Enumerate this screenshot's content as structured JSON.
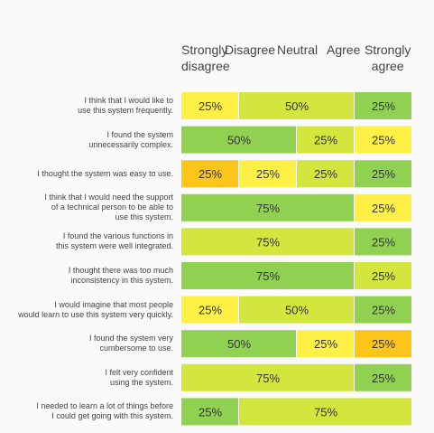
{
  "chart_data": {
    "type": "bar",
    "orientation": "horizontal",
    "stacked": true,
    "percent": true,
    "columns": [
      "Strongly disagree",
      "Disagree",
      "Neutral",
      "Agree",
      "Strongly agree"
    ],
    "header_lines": [
      [
        "Strongly",
        "disagree"
      ],
      [
        "Disagree"
      ],
      [
        "Neutral"
      ],
      [
        "Agree"
      ],
      [
        "Strongly",
        "agree"
      ]
    ],
    "colors": [
      "#fdc419",
      "#fff045",
      "#d2e63d",
      "#fff045",
      "#91d151"
    ],
    "rows": [
      {
        "question": "I think that I would like to use this system frequently.",
        "lines": [
          "I think that I would like to",
          "use this system frequently."
        ],
        "segments": [
          {
            "level": 3,
            "value": 25,
            "label": "25%"
          },
          {
            "level": 2,
            "value": 50,
            "label": "50%"
          },
          {
            "level": 4,
            "value": 25,
            "label": "25%"
          }
        ]
      },
      {
        "question": "I found the system unnecessarily complex.",
        "lines": [
          "I found the system",
          "unnecessarily complex."
        ],
        "segments": [
          {
            "level": 4,
            "value": 50,
            "label": "50%"
          },
          {
            "level": 2,
            "value": 25,
            "label": "25%"
          },
          {
            "level": 3,
            "value": 25,
            "label": "25%"
          }
        ]
      },
      {
        "question": "I thought the system was easy to use.",
        "lines": [
          "I thought the system was easy to use."
        ],
        "segments": [
          {
            "level": 0,
            "value": 25,
            "label": "25%"
          },
          {
            "level": 1,
            "value": 25,
            "label": "25%"
          },
          {
            "level": 2,
            "value": 25,
            "label": "25%"
          },
          {
            "level": 4,
            "value": 25,
            "label": "25%"
          }
        ]
      },
      {
        "question": "I think that I would need the support of a technical person to be able to use this system.",
        "lines": [
          "I think that I would need the support",
          "of a technical person to be able to",
          "use this system."
        ],
        "segments": [
          {
            "level": 4,
            "value": 75,
            "label": "75%"
          },
          {
            "level": 3,
            "value": 25,
            "label": "25%"
          }
        ]
      },
      {
        "question": "I found the various functions in this system were well integrated.",
        "lines": [
          "I found the various functions in",
          "this system were well integrated."
        ],
        "segments": [
          {
            "level": 2,
            "value": 75,
            "label": "75%"
          },
          {
            "level": 4,
            "value": 25,
            "label": "25%"
          }
        ]
      },
      {
        "question": "I thought there was too much inconsistency in this system.",
        "lines": [
          "I thought there was too much",
          "inconsistency in this system."
        ],
        "segments": [
          {
            "level": 4,
            "value": 75,
            "label": "75%"
          },
          {
            "level": 2,
            "value": 25,
            "label": "25%"
          }
        ]
      },
      {
        "question": "I would imagine that most people would learn to use this system very quickly.",
        "lines": [
          "I would imagine that most people",
          "would learn to use this system very quickly."
        ],
        "segments": [
          {
            "level": 3,
            "value": 25,
            "label": "25%"
          },
          {
            "level": 2,
            "value": 50,
            "label": "50%"
          },
          {
            "level": 4,
            "value": 25,
            "label": "25%"
          }
        ]
      },
      {
        "question": "I found the system very cumbersome to use.",
        "lines": [
          "I found the system very",
          "cumbersome to use."
        ],
        "segments": [
          {
            "level": 4,
            "value": 50,
            "label": "50%"
          },
          {
            "level": 1,
            "value": 25,
            "label": "25%"
          },
          {
            "level": 0,
            "value": 25,
            "label": "25%"
          }
        ]
      },
      {
        "question": "I felt very confident using the system.",
        "lines": [
          "I felt very confident",
          "using the system."
        ],
        "segments": [
          {
            "level": 2,
            "value": 75,
            "label": "75%"
          },
          {
            "level": 4,
            "value": 25,
            "label": "25%"
          }
        ]
      },
      {
        "question": "I needed to learn a lot of things before I could get going with this system.",
        "lines": [
          "I needed to learn a lot of things before",
          "I could get going with this system."
        ],
        "segments": [
          {
            "level": 4,
            "value": 25,
            "label": "25%"
          },
          {
            "level": 2,
            "value": 75,
            "label": "75%"
          }
        ]
      }
    ]
  }
}
